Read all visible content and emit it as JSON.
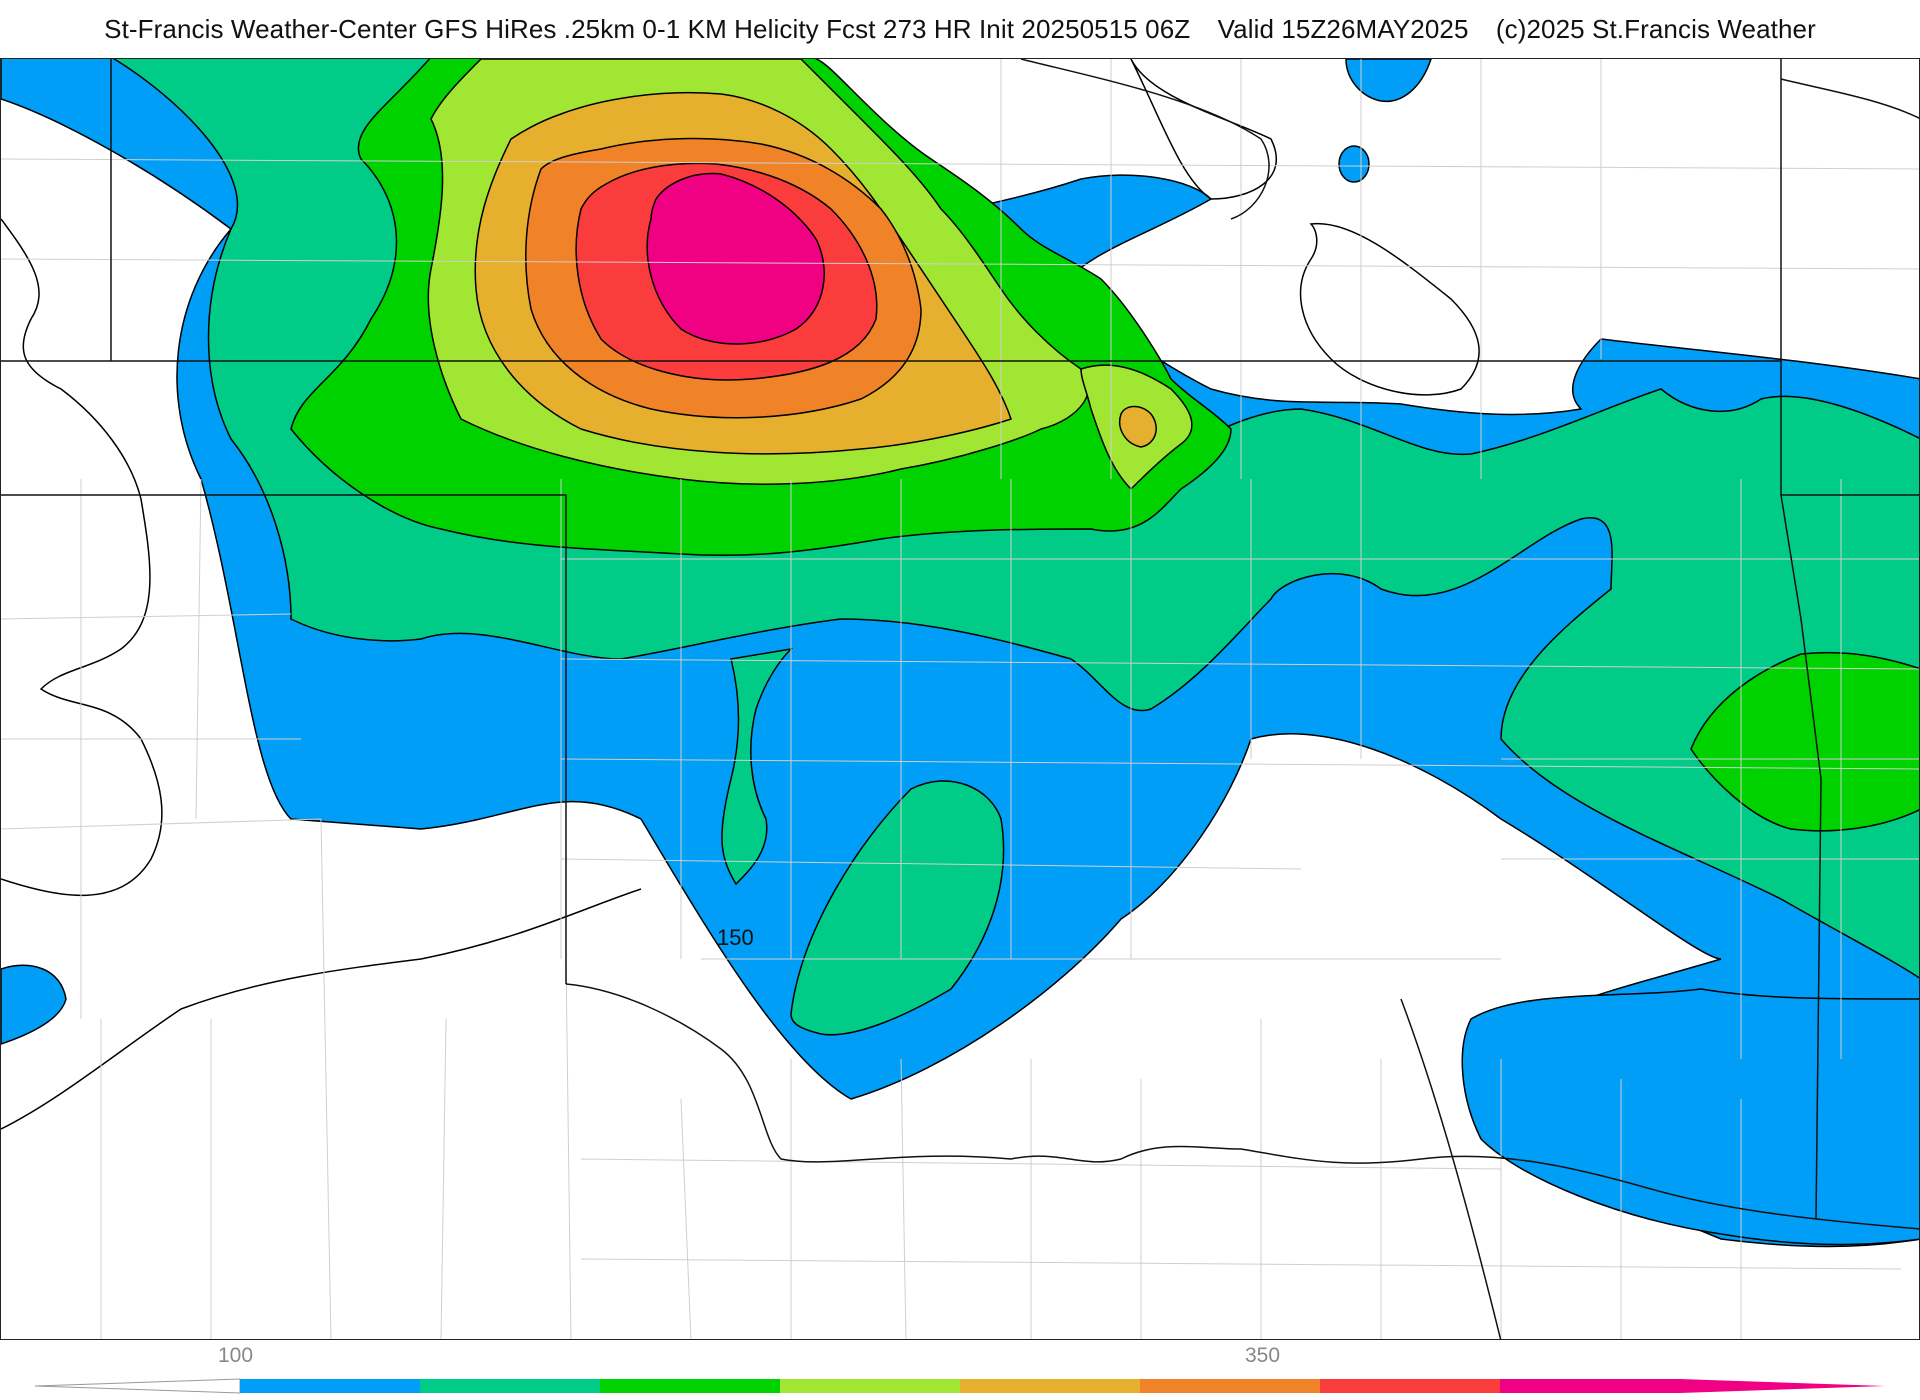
{
  "header": {
    "source": "St-Francis Weather-Center GFS HiRes .25km 0-1 KM Helicity Fcst 273 HR Init 20250515 06Z",
    "valid": "Valid 15Z26MAY2025",
    "copyright": "(c)2025 St.Francis Weather"
  },
  "map": {
    "contour_label": "150"
  },
  "legend": {
    "tick_low": "100",
    "tick_high": "350",
    "colors": [
      "#009ef7",
      "#00cc88",
      "#00d200",
      "#a0e632",
      "#e6af2d",
      "#f08228",
      "#fa3c3c",
      "#f00082"
    ]
  }
}
